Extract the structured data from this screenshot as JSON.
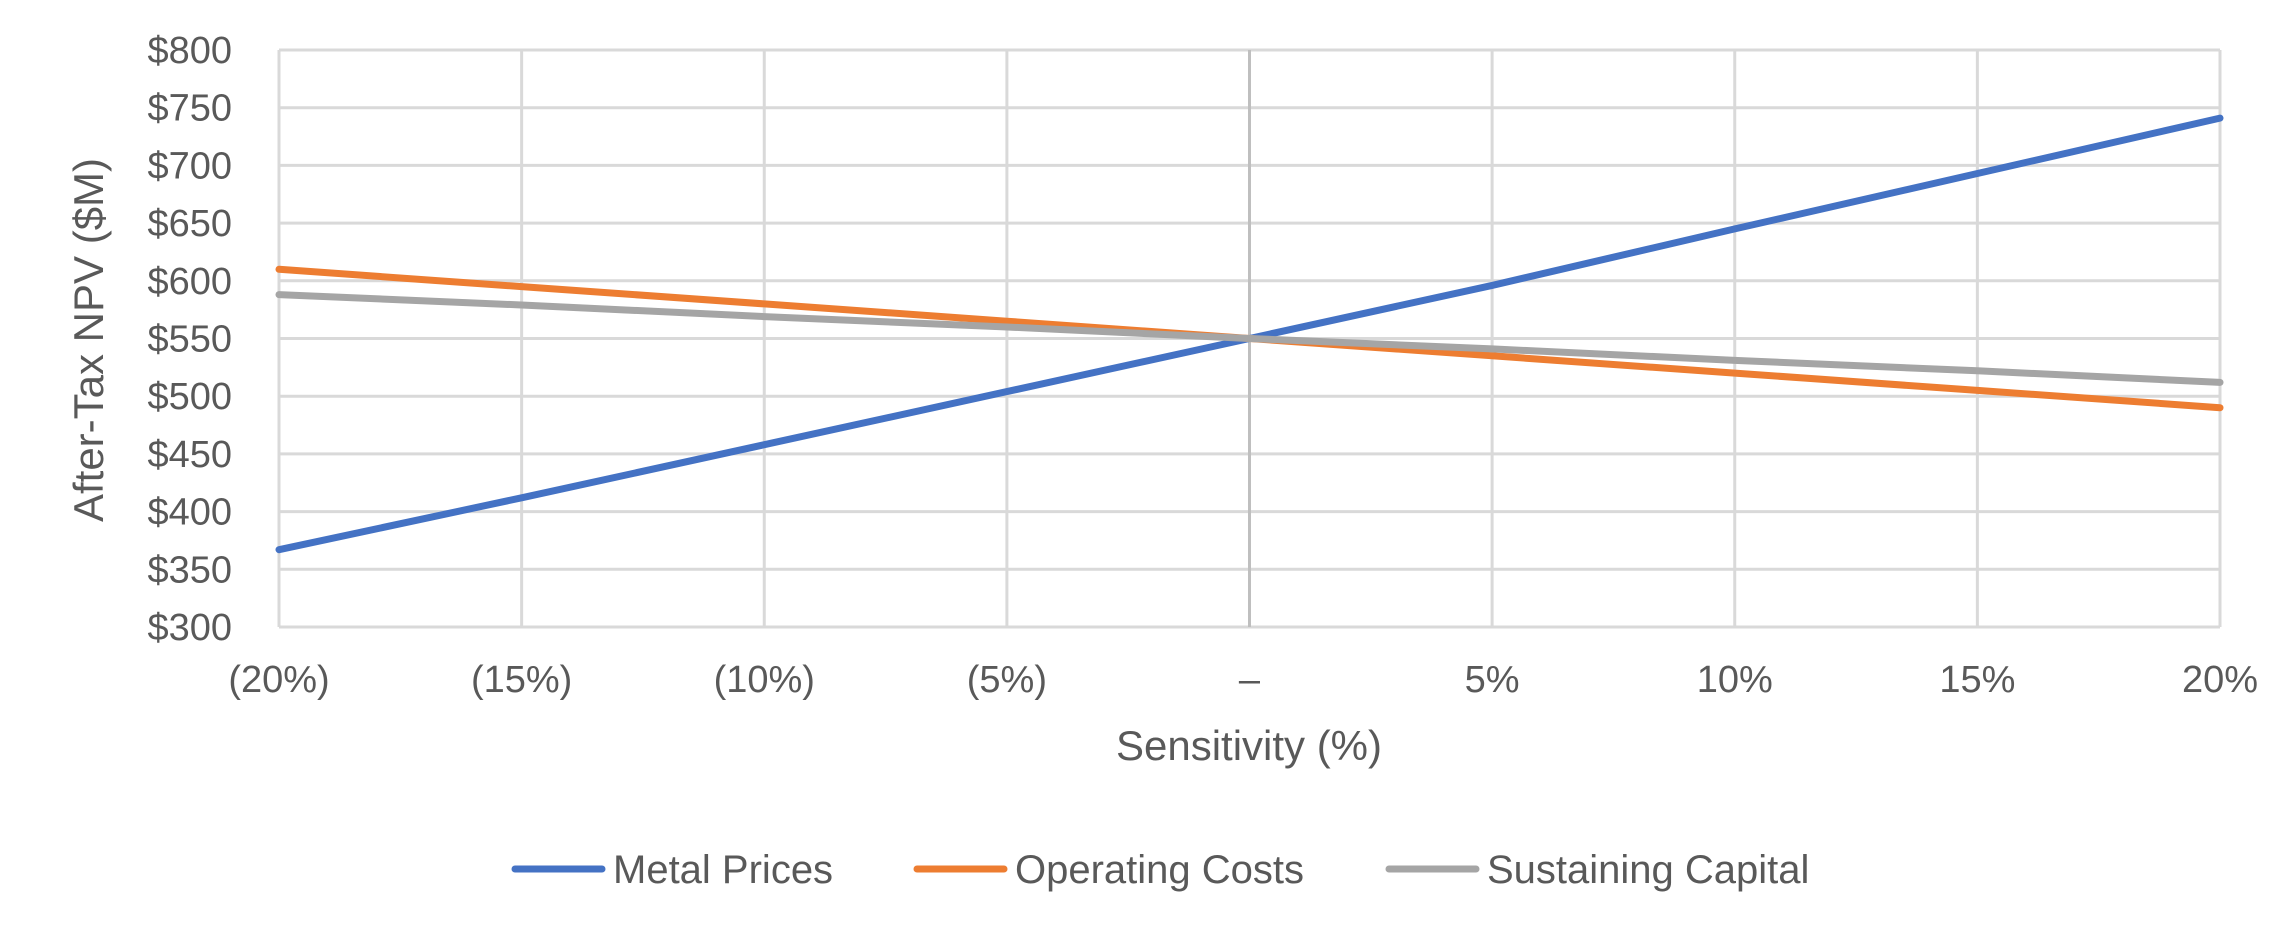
{
  "chart_data": {
    "type": "line",
    "title": "",
    "xlabel": "Sensitivity (%)",
    "ylabel": "After-Tax NPV ($M)",
    "categories": [
      "(20%)",
      "(15%)",
      "(10%)",
      "(5%)",
      "–",
      "5%",
      "10%",
      "15%",
      "20%"
    ],
    "x": [
      -20,
      -15,
      -10,
      -5,
      0,
      5,
      10,
      15,
      20
    ],
    "yticks": [
      "$300",
      "$350",
      "$400",
      "$450",
      "$500",
      "$550",
      "$600",
      "$650",
      "$700",
      "$750",
      "$800"
    ],
    "ylim": [
      300,
      800
    ],
    "grid": true,
    "legend_position": "bottom",
    "series": [
      {
        "name": "Metal Prices",
        "color": "#4472C4",
        "values": [
          367,
          412,
          458,
          504,
          550,
          596,
          645,
          693,
          741
        ]
      },
      {
        "name": "Operating Costs",
        "color": "#ED7D31",
        "values": [
          610,
          595,
          580,
          565,
          550,
          535,
          520,
          505,
          490
        ]
      },
      {
        "name": "Sustaining Capital",
        "color": "#A5A5A5",
        "values": [
          588,
          579,
          569,
          560,
          550,
          541,
          531,
          522,
          512
        ]
      }
    ]
  }
}
